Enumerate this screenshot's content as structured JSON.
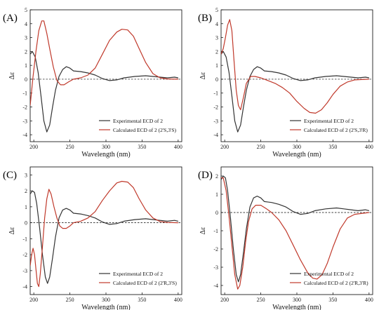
{
  "chart_data": [
    {
      "type": "line",
      "panel_label": "(A)",
      "xlabel": "Wavelength (nm)",
      "ylabel": "Δε",
      "xlim": [
        195,
        405
      ],
      "ylim": [
        -4.5,
        5
      ],
      "xticks": [
        200,
        250,
        300,
        350,
        400
      ],
      "yticks": [
        -4,
        -3,
        -2,
        -1,
        0,
        1,
        2,
        3,
        4,
        5
      ],
      "legend_position": "bottom-right",
      "series": [
        {
          "name": "Experimental ECD of 2",
          "color": "#333333",
          "points": [
            [
              195,
              1.8
            ],
            [
              198,
              2.0
            ],
            [
              202,
              1.6
            ],
            [
              206,
              0.5
            ],
            [
              210,
              -1.2
            ],
            [
              214,
              -3.0
            ],
            [
              218,
              -3.8
            ],
            [
              222,
              -3.3
            ],
            [
              226,
              -2.0
            ],
            [
              230,
              -0.8
            ],
            [
              235,
              0.2
            ],
            [
              240,
              0.7
            ],
            [
              245,
              0.9
            ],
            [
              250,
              0.8
            ],
            [
              255,
              0.6
            ],
            [
              265,
              0.55
            ],
            [
              275,
              0.45
            ],
            [
              285,
              0.3
            ],
            [
              295,
              0.05
            ],
            [
              305,
              -0.1
            ],
            [
              315,
              -0.05
            ],
            [
              325,
              0.1
            ],
            [
              340,
              0.2
            ],
            [
              355,
              0.25
            ],
            [
              365,
              0.2
            ],
            [
              375,
              0.15
            ],
            [
              385,
              0.1
            ],
            [
              395,
              0.15
            ],
            [
              400,
              0.1
            ]
          ]
        },
        {
          "name": "Calculated ECD of 2 (2'S,3'S)",
          "color": "#c0392b",
          "points": [
            [
              195,
              -1.9
            ],
            [
              199,
              0.2
            ],
            [
              203,
              2.0
            ],
            [
              207,
              3.5
            ],
            [
              211,
              4.2
            ],
            [
              214,
              4.2
            ],
            [
              218,
              3.3
            ],
            [
              222,
              2.2
            ],
            [
              227,
              0.9
            ],
            [
              232,
              -0.1
            ],
            [
              237,
              -0.4
            ],
            [
              242,
              -0.4
            ],
            [
              248,
              -0.2
            ],
            [
              255,
              0.0
            ],
            [
              265,
              0.1
            ],
            [
              275,
              0.3
            ],
            [
              285,
              0.8
            ],
            [
              295,
              1.8
            ],
            [
              305,
              2.8
            ],
            [
              315,
              3.4
            ],
            [
              322,
              3.6
            ],
            [
              330,
              3.55
            ],
            [
              338,
              3.1
            ],
            [
              346,
              2.2
            ],
            [
              355,
              1.2
            ],
            [
              365,
              0.4
            ],
            [
              375,
              0.1
            ],
            [
              385,
              0.02
            ],
            [
              400,
              0.0
            ]
          ]
        }
      ]
    },
    {
      "type": "line",
      "panel_label": "(B)",
      "xlabel": "Wavelength (nm)",
      "ylabel": "Δε",
      "xlim": [
        195,
        405
      ],
      "ylim": [
        -4.5,
        5
      ],
      "xticks": [
        200,
        250,
        300,
        350,
        400
      ],
      "yticks": [
        -4,
        -3,
        -2,
        -1,
        0,
        1,
        2,
        3,
        4,
        5
      ],
      "legend_position": "bottom-right",
      "series": [
        {
          "name": "Experimental ECD of 2",
          "color": "#333333",
          "points": [
            [
              195,
              1.8
            ],
            [
              198,
              2.0
            ],
            [
              202,
              1.6
            ],
            [
              206,
              0.5
            ],
            [
              210,
              -1.2
            ],
            [
              214,
              -3.0
            ],
            [
              218,
              -3.8
            ],
            [
              222,
              -3.3
            ],
            [
              226,
              -2.0
            ],
            [
              230,
              -0.8
            ],
            [
              235,
              0.2
            ],
            [
              240,
              0.7
            ],
            [
              245,
              0.9
            ],
            [
              250,
              0.8
            ],
            [
              255,
              0.6
            ],
            [
              265,
              0.55
            ],
            [
              275,
              0.45
            ],
            [
              285,
              0.3
            ],
            [
              295,
              0.05
            ],
            [
              305,
              -0.1
            ],
            [
              315,
              -0.05
            ],
            [
              325,
              0.1
            ],
            [
              340,
              0.2
            ],
            [
              355,
              0.25
            ],
            [
              365,
              0.2
            ],
            [
              375,
              0.15
            ],
            [
              385,
              0.1
            ],
            [
              395,
              0.15
            ],
            [
              400,
              0.1
            ]
          ]
        },
        {
          "name": "Calculated ECD of 2 (2'S,3'R)",
          "color": "#c0392b",
          "points": [
            [
              195,
              1.8
            ],
            [
              198,
              2.2
            ],
            [
              201,
              3.0
            ],
            [
              204,
              3.9
            ],
            [
              207,
              4.3
            ],
            [
              210,
              3.5
            ],
            [
              213,
              1.3
            ],
            [
              216,
              -0.8
            ],
            [
              219,
              -1.9
            ],
            [
              222,
              -2.2
            ],
            [
              226,
              -1.3
            ],
            [
              230,
              -0.3
            ],
            [
              236,
              0.2
            ],
            [
              242,
              0.2
            ],
            [
              250,
              0.1
            ],
            [
              260,
              -0.1
            ],
            [
              270,
              -0.3
            ],
            [
              280,
              -0.6
            ],
            [
              290,
              -1.0
            ],
            [
              300,
              -1.6
            ],
            [
              310,
              -2.1
            ],
            [
              318,
              -2.4
            ],
            [
              326,
              -2.45
            ],
            [
              334,
              -2.2
            ],
            [
              342,
              -1.7
            ],
            [
              350,
              -1.1
            ],
            [
              360,
              -0.5
            ],
            [
              370,
              -0.2
            ],
            [
              380,
              -0.05
            ],
            [
              400,
              0.0
            ]
          ]
        }
      ]
    },
    {
      "type": "line",
      "panel_label": "(C)",
      "xlabel": "Wavelength (nm)",
      "ylabel": "Δε",
      "xlim": [
        195,
        405
      ],
      "ylim": [
        -4.5,
        3.5
      ],
      "xticks": [
        200,
        250,
        300,
        350,
        400
      ],
      "yticks": [
        -4,
        -3,
        -2,
        -1,
        0,
        1,
        2,
        3
      ],
      "legend_position": "bottom-right",
      "series": [
        {
          "name": "Experimental ECD of 2",
          "color": "#333333",
          "points": [
            [
              195,
              1.8
            ],
            [
              198,
              2.0
            ],
            [
              201,
              1.9
            ],
            [
              204,
              1.2
            ],
            [
              208,
              -0.3
            ],
            [
              212,
              -2.0
            ],
            [
              216,
              -3.4
            ],
            [
              219,
              -3.8
            ],
            [
              222,
              -3.4
            ],
            [
              226,
              -2.2
            ],
            [
              230,
              -0.9
            ],
            [
              235,
              0.3
            ],
            [
              240,
              0.8
            ],
            [
              245,
              0.9
            ],
            [
              250,
              0.8
            ],
            [
              255,
              0.6
            ],
            [
              265,
              0.55
            ],
            [
              275,
              0.45
            ],
            [
              285,
              0.3
            ],
            [
              295,
              0.05
            ],
            [
              305,
              -0.1
            ],
            [
              315,
              -0.05
            ],
            [
              325,
              0.1
            ],
            [
              340,
              0.2
            ],
            [
              355,
              0.25
            ],
            [
              365,
              0.2
            ],
            [
              375,
              0.15
            ],
            [
              385,
              0.1
            ],
            [
              395,
              0.15
            ],
            [
              400,
              0.1
            ]
          ]
        },
        {
          "name": "Calculated ECD of 2 (2'R,3'S)",
          "color": "#c0392b",
          "points": [
            [
              195,
              -2.7
            ],
            [
              197,
              -2.0
            ],
            [
              199,
              -1.6
            ],
            [
              201,
              -2.0
            ],
            [
              203,
              -2.9
            ],
            [
              205,
              -3.8
            ],
            [
              207,
              -4.0
            ],
            [
              209,
              -3.2
            ],
            [
              212,
              -1.5
            ],
            [
              215,
              0.3
            ],
            [
              218,
              1.5
            ],
            [
              221,
              2.1
            ],
            [
              224,
              1.8
            ],
            [
              228,
              1.0
            ],
            [
              232,
              0.3
            ],
            [
              236,
              -0.2
            ],
            [
              240,
              -0.35
            ],
            [
              245,
              -0.35
            ],
            [
              250,
              -0.2
            ],
            [
              255,
              0.0
            ],
            [
              265,
              0.1
            ],
            [
              275,
              0.3
            ],
            [
              285,
              0.7
            ],
            [
              295,
              1.4
            ],
            [
              305,
              2.0
            ],
            [
              315,
              2.5
            ],
            [
              322,
              2.6
            ],
            [
              330,
              2.55
            ],
            [
              338,
              2.2
            ],
            [
              346,
              1.5
            ],
            [
              355,
              0.8
            ],
            [
              365,
              0.3
            ],
            [
              375,
              0.08
            ],
            [
              385,
              0.02
            ],
            [
              400,
              0.0
            ]
          ]
        }
      ]
    },
    {
      "type": "line",
      "panel_label": "(D)",
      "xlabel": "Wavelength (nm)",
      "ylabel": "Δε",
      "xlim": [
        195,
        405
      ],
      "ylim": [
        -4.5,
        2.5
      ],
      "xticks": [
        200,
        250,
        300,
        350,
        400
      ],
      "yticks": [
        -4,
        -3,
        -2,
        -1,
        0,
        1,
        2
      ],
      "legend_position": "bottom-right",
      "series": [
        {
          "name": "Experimental ECD of 2",
          "color": "#333333",
          "points": [
            [
              195,
              1.8
            ],
            [
              198,
              2.0
            ],
            [
              201,
              1.9
            ],
            [
              204,
              1.2
            ],
            [
              208,
              -0.3
            ],
            [
              212,
              -2.0
            ],
            [
              216,
              -3.4
            ],
            [
              219,
              -3.8
            ],
            [
              222,
              -3.4
            ],
            [
              226,
              -2.2
            ],
            [
              230,
              -0.9
            ],
            [
              235,
              0.3
            ],
            [
              240,
              0.8
            ],
            [
              245,
              0.9
            ],
            [
              250,
              0.8
            ],
            [
              255,
              0.6
            ],
            [
              265,
              0.55
            ],
            [
              275,
              0.45
            ],
            [
              285,
              0.3
            ],
            [
              295,
              0.05
            ],
            [
              305,
              -0.1
            ],
            [
              315,
              -0.05
            ],
            [
              325,
              0.1
            ],
            [
              340,
              0.2
            ],
            [
              355,
              0.25
            ],
            [
              365,
              0.2
            ],
            [
              375,
              0.15
            ],
            [
              385,
              0.1
            ],
            [
              395,
              0.15
            ],
            [
              400,
              0.1
            ]
          ]
        },
        {
          "name": "Calculated ECD of 2 (2'R,3'R)",
          "color": "#c0392b",
          "points": [
            [
              195,
              1.9
            ],
            [
              198,
              1.9
            ],
            [
              202,
              1.2
            ],
            [
              206,
              -0.2
            ],
            [
              210,
              -1.8
            ],
            [
              214,
              -3.4
            ],
            [
              218,
              -4.2
            ],
            [
              221,
              -4.0
            ],
            [
              225,
              -3.0
            ],
            [
              229,
              -1.6
            ],
            [
              233,
              -0.5
            ],
            [
              238,
              0.2
            ],
            [
              243,
              0.4
            ],
            [
              250,
              0.4
            ],
            [
              258,
              0.2
            ],
            [
              265,
              0.0
            ],
            [
              275,
              -0.4
            ],
            [
              285,
              -1.0
            ],
            [
              295,
              -1.8
            ],
            [
              305,
              -2.6
            ],
            [
              315,
              -3.3
            ],
            [
              322,
              -3.6
            ],
            [
              328,
              -3.65
            ],
            [
              335,
              -3.4
            ],
            [
              342,
              -2.8
            ],
            [
              350,
              -1.9
            ],
            [
              360,
              -0.9
            ],
            [
              370,
              -0.3
            ],
            [
              380,
              -0.1
            ],
            [
              400,
              0.0
            ]
          ]
        }
      ]
    }
  ]
}
